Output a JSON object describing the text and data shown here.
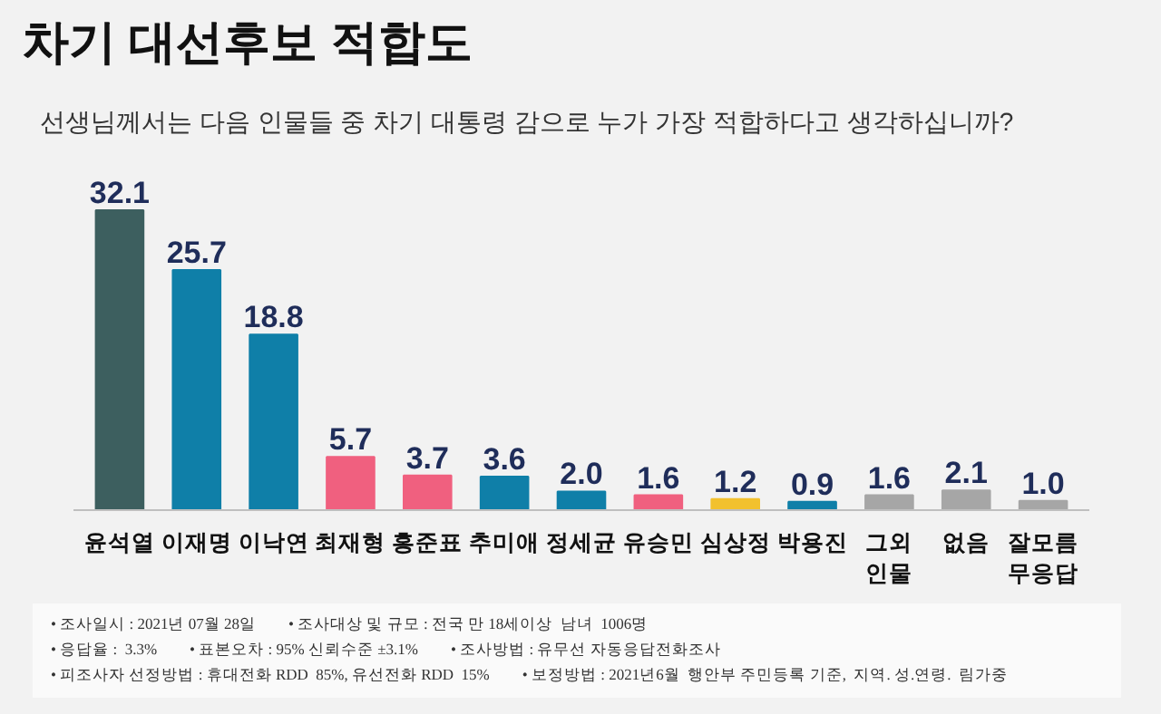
{
  "chart_data": {
    "type": "bar",
    "title": "차기 대선후보 적합도",
    "subtitle": "선생님께서는 다음 인물들 중 차기 대통령 감으로 누가 가장 적합하다고 생각하십니까?",
    "categories": [
      "윤석열",
      "이재명",
      "이낙연",
      "최재형",
      "홍준표",
      "추미애",
      "정세균",
      "유승민",
      "심상정",
      "박용진",
      "그외\n인물",
      "없음",
      "잘모름\n무응답"
    ],
    "values": [
      32.1,
      25.7,
      18.8,
      5.7,
      3.7,
      3.6,
      2.0,
      1.6,
      1.2,
      0.9,
      1.6,
      2.1,
      1.0
    ],
    "value_labels": [
      "32.1",
      "25.7",
      "18.8",
      "5.7",
      "3.7",
      "3.6",
      "2.0",
      "1.6",
      "1.2",
      "0.9",
      "1.6",
      "2.1",
      "1.0"
    ],
    "colors": [
      "#3d5f5f",
      "#0f7fa8",
      "#0f7fa8",
      "#f0607f",
      "#f0607f",
      "#0f7fa8",
      "#0f7fa8",
      "#f0607f",
      "#f2c12e",
      "#0f7fa8",
      "#a6a6a6",
      "#a6a6a6",
      "#a6a6a6"
    ],
    "grid": false,
    "annotations": [
      "• 조사일시 : 2021년 07월 28일",
      "• 조사대상 및 규모 : 전국 만 18세이상  남녀  1006명",
      "• 응답율 :  3.3%",
      "• 표본오차 : 95% 신뢰수준 ±3.1%",
      "• 조사방법 : 유무선 자동응답전화조사",
      "• 피조사자 선정방법 : 휴대전화 RDD  85%, 유선전화 RDD  15%",
      "• 보정방법 : 2021년6월  행안부 주민등록 기준,  지역. 성.연령.  림가중"
    ]
  }
}
